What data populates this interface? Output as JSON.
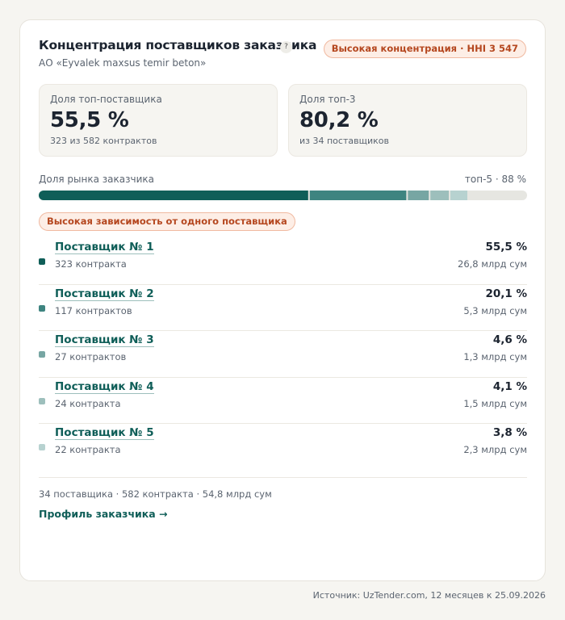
{
  "header": {
    "title": "Концентрация поставщиков заказчика",
    "help": "?",
    "subtitle": "АО «Eyvalek maxsus temir beton»",
    "badge": "Высокая концентрация · HHI 3 547"
  },
  "cards": [
    {
      "label": "Доля топ-поставщика",
      "value": "55,5 %",
      "note": "323 из 582 контрактов"
    },
    {
      "label": "Доля топ-3",
      "value": "80,2 %",
      "note": "из 34 поставщиков"
    }
  ],
  "share_bar": {
    "label": "Доля рынка заказчика",
    "summary": "топ-5 · 88 %",
    "lim": [
      0,
      100
    ],
    "track_color": "#e6e6e1"
  },
  "warning": "Высокая зависимость от одного поставщика",
  "suppliers": [
    {
      "name": "Поставщик № 1",
      "contracts": "323 контракта",
      "share": 55.5,
      "share_label": "55,5 %",
      "amount": "26,8 млрд сум",
      "color": "#0f5e58"
    },
    {
      "name": "Поставщик № 2",
      "contracts": "117 контрактов",
      "share": 20.1,
      "share_label": "20,1 %",
      "amount": "5,3 млрд сум",
      "color": "#3e8480"
    },
    {
      "name": "Поставщик № 3",
      "contracts": "27 контрактов",
      "share": 4.6,
      "share_label": "4,6 %",
      "amount": "1,3 млрд сум",
      "color": "#77a6a3"
    },
    {
      "name": "Поставщик № 4",
      "contracts": "24 контракта",
      "share": 4.1,
      "share_label": "4,1 %",
      "amount": "1,5 млрд сум",
      "color": "#9dbfbc"
    },
    {
      "name": "Поставщик № 5",
      "contracts": "22 контракта",
      "share": 3.8,
      "share_label": "3,8 %",
      "amount": "2,3 млрд сум",
      "color": "#b7d2d0"
    }
  ],
  "footer": {
    "stats": "34 поставщика · 582 контракта · 54,8 млрд сум",
    "link": "Профиль заказчика →"
  },
  "source": "Источник: UzTender.com, 12 месяцев к 25.09.2026"
}
